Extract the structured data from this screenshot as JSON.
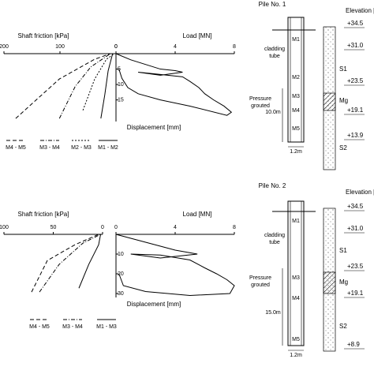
{
  "chart_data": [
    {
      "type": "line",
      "title": "Shaft friction [kPa]",
      "xlim": [
        200,
        0
      ],
      "xticks": [
        200,
        100,
        0
      ],
      "ylim": [
        0,
        16
      ],
      "series": [
        {
          "name": "M4 - M5",
          "color": "#000",
          "style": "dashed",
          "x": [
            179,
            101,
            38,
            10
          ],
          "values": [
            15.1,
            5.9,
            1.3,
            0
          ]
        },
        {
          "name": "M3 - M4",
          "color": "#000",
          "style": "dashdot",
          "x": [
            101,
            73,
            45,
            10
          ],
          "values": [
            15.1,
            7.7,
            3.1,
            0
          ]
        },
        {
          "name": "M2 - M3",
          "color": "#000",
          "style": "dotted",
          "x": [
            59,
            38,
            17,
            3
          ],
          "values": [
            13.2,
            5.9,
            1.3,
            0
          ]
        },
        {
          "name": "M1 - M2",
          "color": "#000",
          "style": "solid",
          "x": [
            27,
            20,
            14,
            6
          ],
          "values": [
            15.1,
            9.6,
            4,
            0
          ]
        }
      ]
    },
    {
      "type": "line",
      "title": "Load [MN]",
      "ylabel": "Displacement [mm]",
      "xlim": [
        0,
        8
      ],
      "xticks": [
        0,
        4,
        8
      ],
      "ylim": [
        0,
        22
      ],
      "yticks": [
        5,
        10,
        15
      ],
      "series": [
        {
          "color": "#000",
          "style": "solid",
          "x": [
            0,
            1,
            2,
            3,
            4,
            4.5,
            3,
            1.5,
            2.5,
            4.5,
            5,
            5.6,
            6,
            6.6,
            7.3,
            7.8,
            7.5,
            5,
            3,
            1.5,
            0.8,
            0.4,
            0.2
          ],
          "values": [
            0,
            2,
            3.5,
            5,
            5.5,
            6,
            7,
            6,
            6.5,
            7.5,
            9,
            11,
            13,
            15,
            17,
            19,
            20,
            17,
            15,
            13,
            11,
            8,
            5
          ]
        }
      ]
    },
    {
      "type": "line",
      "title": "Shaft friction [kPa]",
      "xlim": [
        100,
        0
      ],
      "xticks": [
        100,
        50,
        0
      ],
      "ylim": [
        0,
        16
      ],
      "series": [
        {
          "name": "M4 - M5",
          "color": "#000",
          "style": "dashed",
          "x": [
            72,
            56,
            28,
            4
          ],
          "values": [
            15,
            6.8,
            2.7,
            0
          ]
        },
        {
          "name": "M3 - M4",
          "color": "#000",
          "style": "dashdot",
          "x": [
            64,
            44,
            20,
            2
          ],
          "values": [
            15,
            7.8,
            2.3,
            0
          ]
        },
        {
          "name": "M1 - M3",
          "color": "#000",
          "style": "solid",
          "x": [
            24,
            14,
            4,
            2
          ],
          "values": [
            14,
            7.8,
            2.7,
            0
          ]
        }
      ]
    },
    {
      "type": "line",
      "title": "Load [MN]",
      "ylabel": "Displacement [mm]",
      "xlim": [
        0,
        8
      ],
      "xticks": [
        0,
        4,
        8
      ],
      "ylim": [
        0,
        32
      ],
      "yticks": [
        10,
        20,
        30
      ],
      "series": [
        {
          "color": "#000",
          "style": "solid",
          "x": [
            0,
            2,
            4,
            5.5,
            3,
            1,
            3,
            5,
            6,
            6.8,
            7.5,
            8,
            7.7,
            5,
            2,
            0.5,
            0.2
          ],
          "values": [
            0,
            4,
            8,
            10,
            12,
            10,
            10.5,
            13,
            17,
            20,
            23,
            26,
            30,
            31,
            29,
            26,
            20
          ]
        }
      ]
    }
  ],
  "piles": [
    {
      "title": "Pile No. 1",
      "elevation_title": "Elevation [m",
      "segments": [
        "M1",
        "M2",
        "M3",
        "M4",
        "M5"
      ],
      "tube": [
        "cladding",
        "tube"
      ],
      "grouted": [
        "Pressure",
        "grouted"
      ],
      "length": "10.0m",
      "diameter": "1.2m",
      "soils": [
        "S1",
        "Mg",
        "S2"
      ],
      "elevations": [
        "+34.5",
        "+31.0",
        "+23.5",
        "+19.1",
        "+13.9"
      ]
    },
    {
      "title": "Pile No. 2",
      "elevation_title": "Elevation [m",
      "segments": [
        "M1",
        "M3",
        "M4",
        "M5"
      ],
      "tube": [
        "cladding",
        "tube"
      ],
      "grouted": [
        "Pressure",
        "grouted"
      ],
      "length": "15.0m",
      "diameter": "1.2m",
      "soils": [
        "S1",
        "Mg",
        "S2"
      ],
      "elevations": [
        "+34.5",
        "+31.0",
        "+23.5",
        "+19.1",
        "+8.9"
      ]
    }
  ]
}
